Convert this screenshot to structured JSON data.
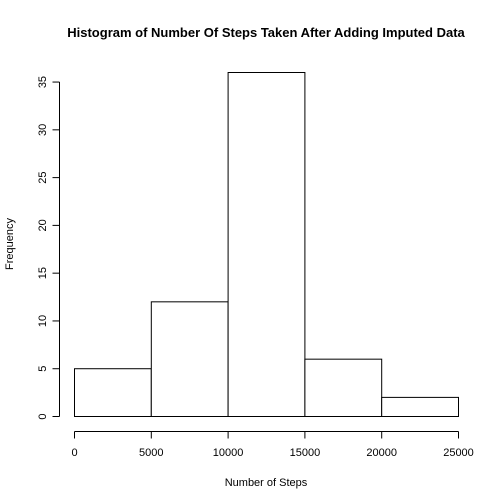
{
  "chart_data": {
    "type": "bar",
    "title": "Histogram of Number Of Steps Taken After Adding Imputed Data",
    "xlabel": "Number of Steps",
    "ylabel": "Frequency",
    "bins": [
      {
        "from": 0,
        "to": 5000,
        "count": 5
      },
      {
        "from": 5000,
        "to": 10000,
        "count": 12
      },
      {
        "from": 10000,
        "to": 15000,
        "count": 36
      },
      {
        "from": 15000,
        "to": 20000,
        "count": 6
      },
      {
        "from": 20000,
        "to": 25000,
        "count": 2
      }
    ],
    "xticks": [
      0,
      5000,
      10000,
      15000,
      20000,
      25000
    ],
    "yticks": [
      0,
      5,
      10,
      15,
      20,
      25,
      30,
      35
    ],
    "xlim": [
      0,
      25000
    ],
    "ylim": [
      0,
      36
    ],
    "grid": false,
    "bar_fill": "#ffffff",
    "bar_stroke": "#000000"
  }
}
